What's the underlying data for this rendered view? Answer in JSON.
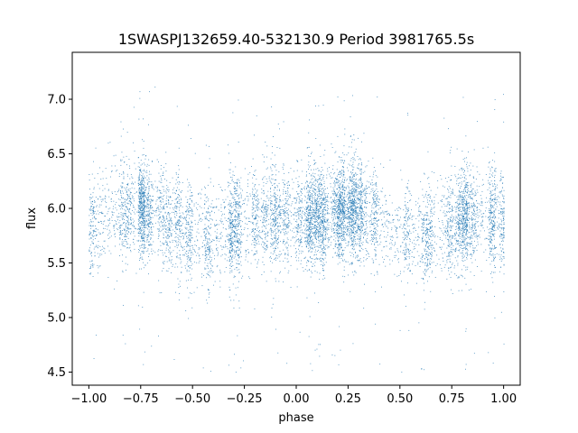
{
  "chart_data": {
    "type": "scatter",
    "title": "1SWASPJ132659.40-532130.9 Period 3981765.5s",
    "xlabel": "phase",
    "ylabel": "flux",
    "xlim": [
      -1.08,
      1.08
    ],
    "ylim": [
      4.38,
      7.43
    ],
    "xticks": [
      -1.0,
      -0.75,
      -0.5,
      -0.25,
      0.0,
      0.25,
      0.5,
      0.75,
      1.0
    ],
    "xtick_labels": [
      "−1.00",
      "−0.75",
      "−0.50",
      "−0.25",
      "0.00",
      "0.25",
      "0.50",
      "0.75",
      "1.00"
    ],
    "yticks": [
      4.5,
      5.0,
      5.5,
      6.0,
      6.5,
      7.0
    ],
    "ytick_labels": [
      "4.5",
      "5.0",
      "5.5",
      "6.0",
      "6.5",
      "7.0"
    ],
    "grid": false,
    "marker_color": "#1f77b4",
    "x_range": [
      -1.0,
      1.0
    ],
    "flux_range": [
      4.5,
      7.3
    ],
    "mean_flux_profile": {
      "phase": [
        -1.0,
        -0.9,
        -0.8,
        -0.75,
        -0.7,
        -0.6,
        -0.5,
        -0.4,
        -0.35,
        -0.3,
        -0.2,
        -0.1,
        0.0,
        0.1,
        0.2,
        0.25,
        0.3,
        0.4,
        0.5,
        0.6,
        0.65,
        0.7,
        0.8,
        0.9,
        1.0
      ],
      "flux": [
        5.85,
        5.92,
        5.98,
        6.0,
        5.98,
        5.88,
        5.75,
        5.74,
        5.78,
        5.82,
        5.9,
        5.94,
        5.92,
        5.92,
        5.98,
        6.0,
        5.98,
        5.88,
        5.76,
        5.74,
        5.78,
        5.82,
        5.9,
        5.93,
        5.9
      ]
    },
    "flux_scatter_sigma": 0.22,
    "n_points_approx": 40000
  }
}
